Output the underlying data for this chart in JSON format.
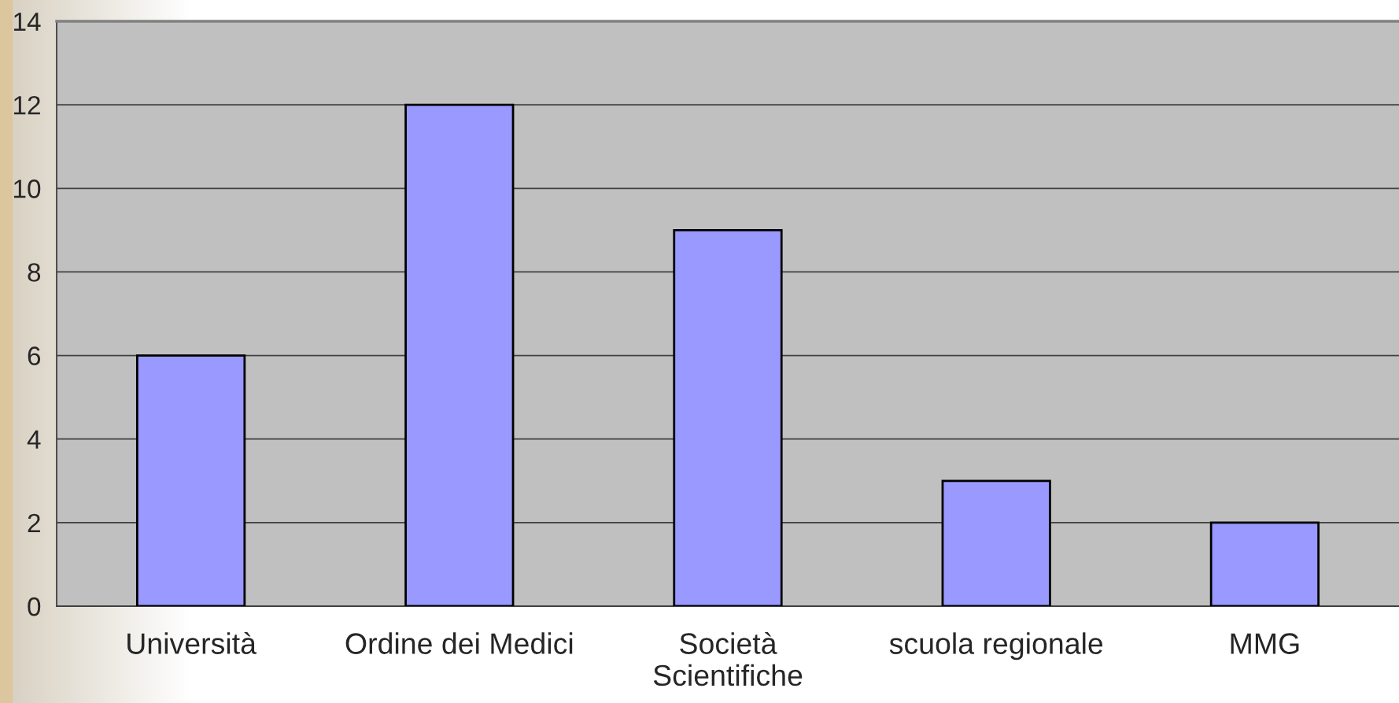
{
  "chart_data": {
    "type": "bar",
    "categories": [
      "Università",
      "Ordine dei Medici",
      "Società\nScientifiche",
      "scuola regionale",
      "MMG"
    ],
    "values": [
      6,
      12,
      9,
      3,
      2
    ],
    "color": "#9999ff",
    "ylim": [
      0,
      14
    ],
    "yticks": [
      0,
      2,
      4,
      6,
      8,
      10,
      12,
      14
    ],
    "grid": "y"
  }
}
